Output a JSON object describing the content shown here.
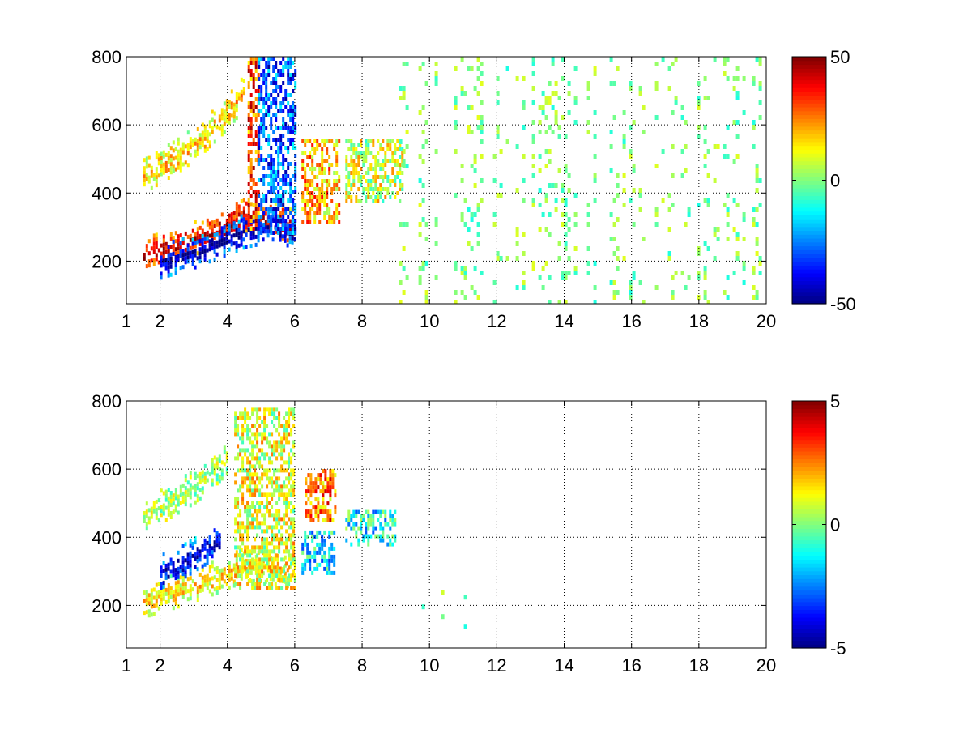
{
  "chart_data": [
    {
      "type": "heatmap",
      "title": "",
      "xlabel": "",
      "ylabel": "",
      "xlim": [
        1,
        20
      ],
      "ylim": [
        75,
        800
      ],
      "x_ticks": [
        1,
        2,
        4,
        6,
        8,
        10,
        12,
        14,
        16,
        18,
        20
      ],
      "y_ticks": [
        200,
        400,
        600,
        800
      ],
      "grid": true,
      "grid_style": "dotted",
      "colormap": "jet",
      "colorbar": {
        "position": "right",
        "min": -50,
        "max": 50,
        "ticks": [
          -50,
          0,
          50
        ]
      },
      "features": [
        {
          "name": "lower ridge",
          "x": [
            1.5,
            2.0,
            2.5,
            3.0,
            3.5,
            4.0,
            4.5,
            5.0,
            5.5,
            6.0
          ],
          "y": [
            220,
            235,
            250,
            268,
            290,
            310,
            335,
            330,
            320,
            300
          ],
          "value": 45
        },
        {
          "name": "lower ridge negative band",
          "x": [
            2.0,
            2.5,
            3.0,
            3.5,
            4.0,
            4.5,
            5.0,
            5.5,
            6.0
          ],
          "y": [
            200,
            215,
            230,
            250,
            270,
            290,
            300,
            300,
            290
          ],
          "value": -45
        },
        {
          "name": "upper ridge",
          "x": [
            1.5,
            2.0,
            2.5,
            3.0,
            3.5,
            4.0,
            4.5
          ],
          "y": [
            450,
            480,
            510,
            545,
            590,
            640,
            700
          ],
          "value": 18
        },
        {
          "name": "vertical positive band",
          "x": [
            4.6,
            4.9
          ],
          "y": [
            280,
            800
          ],
          "value": 30
        },
        {
          "name": "vertical negative band",
          "x": [
            4.9,
            6.0
          ],
          "y": [
            280,
            800
          ],
          "value": -30
        },
        {
          "name": "patch 6-7",
          "x": [
            6.2,
            7.3
          ],
          "y": [
            320,
            560
          ],
          "value": 20
        },
        {
          "name": "patch 7.5-9",
          "x": [
            7.5,
            9.2
          ],
          "y": [
            380,
            560
          ],
          "value": 8
        }
      ],
      "sparse_region": {
        "x": [
          9,
          20
        ],
        "y": [
          75,
          800
        ],
        "value_range": [
          -10,
          10
        ]
      }
    },
    {
      "type": "heatmap",
      "title": "",
      "xlabel": "",
      "ylabel": "",
      "xlim": [
        1,
        20
      ],
      "ylim": [
        75,
        800
      ],
      "x_ticks": [
        1,
        2,
        4,
        6,
        8,
        10,
        12,
        14,
        16,
        18,
        20
      ],
      "y_ticks": [
        200,
        400,
        600,
        800
      ],
      "grid": true,
      "grid_style": "dotted",
      "colormap": "jet",
      "colorbar": {
        "position": "right",
        "min": -5,
        "max": 5,
        "ticks": [
          -5,
          0,
          5
        ]
      },
      "features": [
        {
          "name": "lower ridge",
          "x": [
            1.5,
            2.0,
            2.5,
            3.0,
            3.5,
            4.0,
            4.5,
            5.0,
            5.5,
            6.0
          ],
          "y": [
            215,
            230,
            245,
            262,
            280,
            300,
            320,
            320,
            310,
            300
          ],
          "value": 1.5
        },
        {
          "name": "negative streak",
          "x": [
            2.0,
            2.5,
            3.0,
            3.5,
            3.8
          ],
          "y": [
            300,
            320,
            350,
            380,
            400
          ],
          "value": -4.5
        },
        {
          "name": "upper ridge",
          "x": [
            1.5,
            2.0,
            2.5,
            3.0,
            3.5,
            4.0
          ],
          "y": [
            460,
            490,
            520,
            550,
            590,
            640
          ],
          "value": 0.5
        },
        {
          "name": "vertical band",
          "x": [
            4.2,
            6.0
          ],
          "y": [
            250,
            780
          ],
          "value": 1.0
        },
        {
          "name": "patch 6-7 orange",
          "x": [
            6.3,
            7.2
          ],
          "y": [
            450,
            600
          ],
          "value": 2.5
        },
        {
          "name": "patch 6-7 cyan",
          "x": [
            6.2,
            7.2
          ],
          "y": [
            300,
            420
          ],
          "value": -1.5
        },
        {
          "name": "patch 7.5-9 cyan",
          "x": [
            7.5,
            9.0
          ],
          "y": [
            380,
            480
          ],
          "value": -1.2
        }
      ],
      "sparse_region": {
        "x": [
          9,
          12
        ],
        "y": [
          140,
          260
        ],
        "value_range": [
          -1,
          1
        ]
      }
    }
  ]
}
